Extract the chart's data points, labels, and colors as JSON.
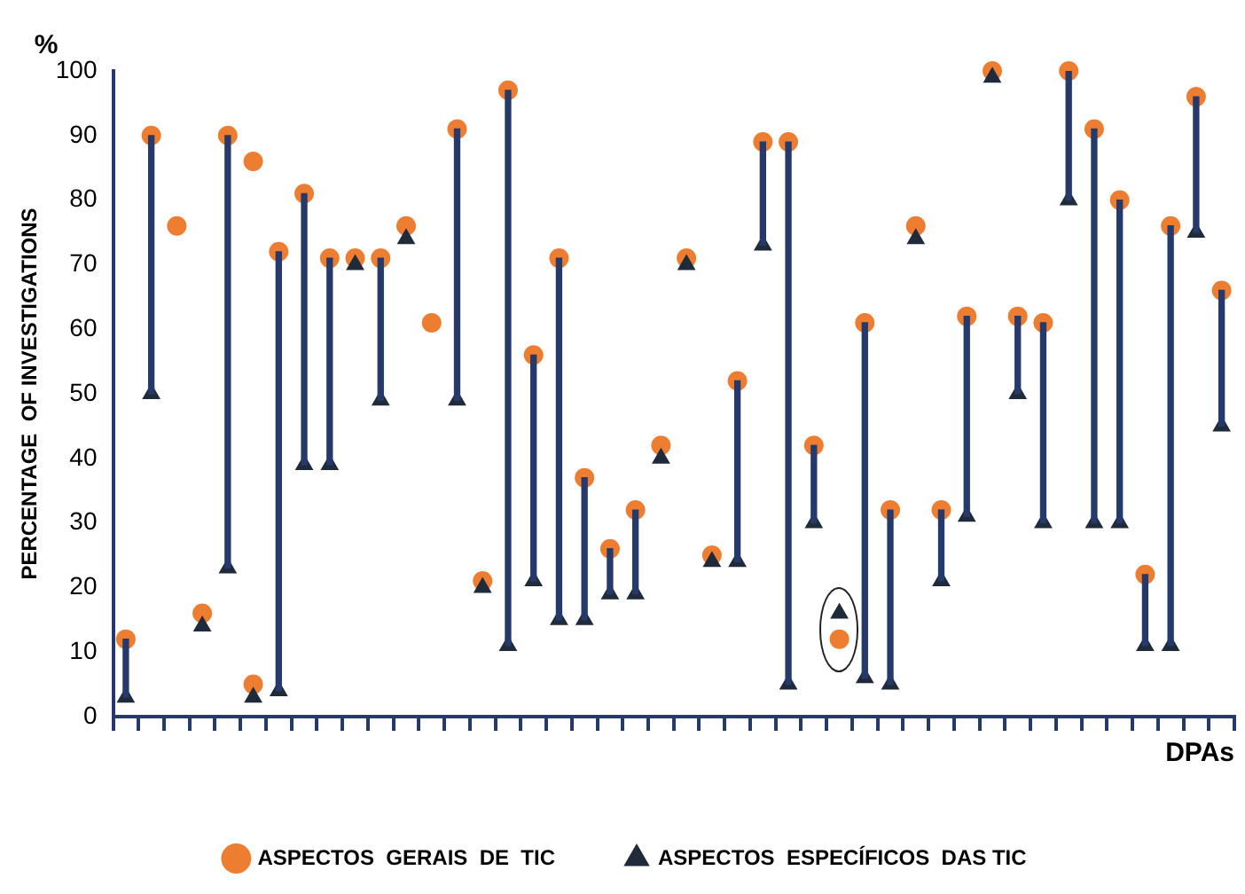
{
  "chart_data": {
    "type": "scatter",
    "xlabel": "DPAs",
    "ylabel": "PERCENTAGE  OF INVESTIGATIONS",
    "annotations": [
      "%"
    ],
    "categories": [
      null,
      null,
      null,
      null,
      null,
      null,
      null,
      null,
      null,
      null,
      null,
      null,
      null,
      null,
      null,
      null,
      null,
      null,
      null,
      null,
      null,
      null,
      null,
      null,
      null,
      null,
      null,
      null,
      null,
      null,
      null,
      null,
      null,
      null,
      null,
      null,
      null,
      null,
      null,
      null,
      null,
      null,
      null,
      null
    ],
    "series": [
      {
        "type": "bar",
        "color": "#253a6a",
        "base": [
          3,
          50,
          null,
          null,
          23,
          null,
          4,
          39,
          39,
          null,
          49,
          null,
          null,
          49,
          null,
          11,
          21,
          15,
          15,
          19,
          19,
          null,
          null,
          null,
          24,
          73,
          5,
          30,
          null,
          6,
          5,
          null,
          21,
          31,
          null,
          50,
          30,
          80,
          30,
          30,
          11,
          11,
          75,
          45
        ],
        "values": [
          9,
          40,
          null,
          null,
          67,
          null,
          68,
          42,
          32,
          null,
          22,
          null,
          null,
          42,
          null,
          86,
          35,
          56,
          22,
          7,
          13,
          null,
          null,
          null,
          28,
          16,
          84,
          12,
          null,
          55,
          27,
          null,
          11,
          31,
          null,
          12,
          31,
          20,
          61,
          50,
          11,
          65,
          21,
          21
        ]
      },
      {
        "name": "ASPECTOS  GERAIS  DE  TIC",
        "color": "#ed7d31",
        "marker": "circle",
        "values": [
          12,
          90,
          76,
          16,
          90,
          86,
          72,
          81,
          71,
          71,
          71,
          76,
          61,
          91,
          21,
          97,
          56,
          71,
          37,
          26,
          32,
          42,
          71,
          25,
          52,
          89,
          89,
          42,
          12,
          61,
          32,
          76,
          32,
          62,
          100,
          62,
          61,
          100,
          91,
          80,
          22,
          76,
          96,
          66
        ]
      },
      {
        "name": "ASPECTOS  ESPECÍFICOS  DAS TIC",
        "color": "#1f2a3a",
        "marker": "triangle",
        "values": [
          3,
          50,
          null,
          14,
          23,
          3,
          4,
          39,
          39,
          70,
          49,
          74,
          null,
          49,
          20,
          11,
          21,
          15,
          15,
          19,
          19,
          40,
          70,
          24,
          24,
          73,
          5,
          30,
          16,
          6,
          5,
          74,
          21,
          31,
          99,
          50,
          30,
          80,
          30,
          30,
          11,
          11,
          75,
          45
        ]
      },
      {
        "color": "#ed7d31",
        "marker": "circle",
        "values": [
          null,
          null,
          null,
          null,
          null,
          5,
          null,
          null,
          null,
          null,
          null,
          null,
          null,
          null,
          null,
          null,
          null,
          null,
          null,
          null,
          null,
          null,
          null,
          null,
          null,
          null,
          null,
          null,
          null,
          null,
          null,
          null,
          null,
          null,
          null,
          null,
          null,
          null,
          null,
          null,
          null,
          null,
          null,
          null
        ]
      }
    ],
    "ylim": [
      0,
      100
    ],
    "yticks": [
      0,
      10,
      20,
      30,
      40,
      50,
      60,
      70,
      80,
      90,
      100
    ],
    "grid": false,
    "legend": "bottom",
    "tick_labels": "y"
  }
}
